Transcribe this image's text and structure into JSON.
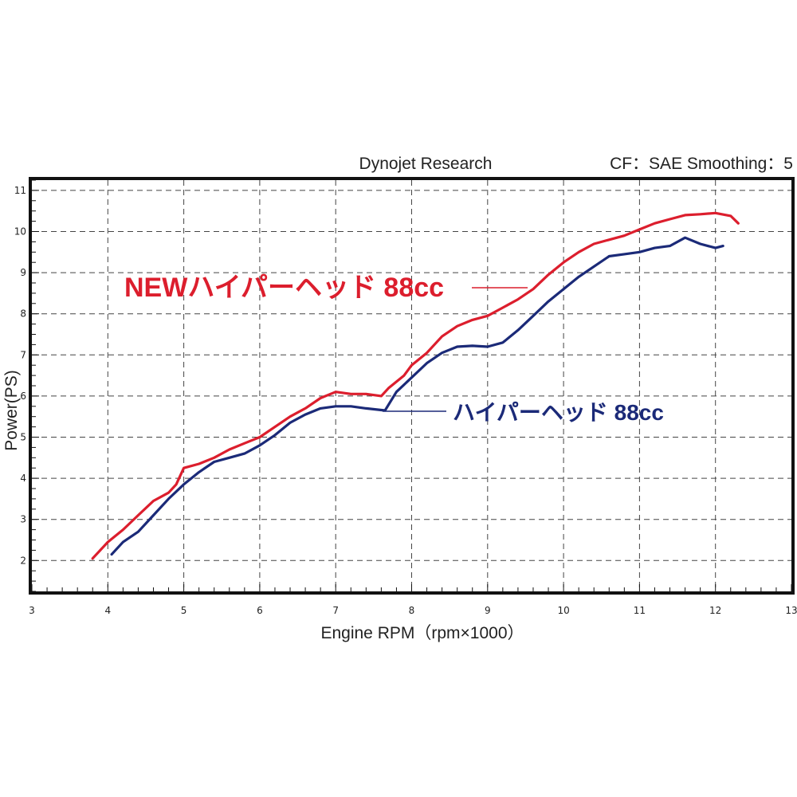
{
  "header": {
    "left_text": "Dynojet Research",
    "right_text": "CF：SAE Smoothing：5"
  },
  "chart_data": {
    "type": "line",
    "xlabel": "Engine RPM（rpm×1000）",
    "ylabel": "Power(PS)",
    "xlim": [
      3,
      13
    ],
    "ylim": [
      1.25,
      11.25
    ],
    "xticks": [
      3,
      4,
      5,
      6,
      7,
      8,
      9,
      10,
      11,
      12,
      13
    ],
    "yticks": [
      2,
      3,
      4,
      5,
      6,
      7,
      8,
      9,
      10,
      11
    ],
    "grid": true,
    "series": [
      {
        "name": "NEWハイパーヘッド 88cc",
        "color": "#dc1e2d",
        "points": [
          [
            3.8,
            2.05
          ],
          [
            4.0,
            2.45
          ],
          [
            4.2,
            2.75
          ],
          [
            4.4,
            3.1
          ],
          [
            4.6,
            3.45
          ],
          [
            4.8,
            3.65
          ],
          [
            4.9,
            3.85
          ],
          [
            5.0,
            4.25
          ],
          [
            5.2,
            4.35
          ],
          [
            5.4,
            4.5
          ],
          [
            5.6,
            4.7
          ],
          [
            5.8,
            4.85
          ],
          [
            6.0,
            5.0
          ],
          [
            6.2,
            5.25
          ],
          [
            6.4,
            5.5
          ],
          [
            6.6,
            5.7
          ],
          [
            6.8,
            5.95
          ],
          [
            7.0,
            6.1
          ],
          [
            7.2,
            6.05
          ],
          [
            7.4,
            6.05
          ],
          [
            7.6,
            6.0
          ],
          [
            7.7,
            6.2
          ],
          [
            7.9,
            6.5
          ],
          [
            8.0,
            6.75
          ],
          [
            8.2,
            7.05
          ],
          [
            8.4,
            7.45
          ],
          [
            8.6,
            7.7
          ],
          [
            8.8,
            7.85
          ],
          [
            9.0,
            7.95
          ],
          [
            9.2,
            8.15
          ],
          [
            9.4,
            8.35
          ],
          [
            9.6,
            8.6
          ],
          [
            9.8,
            8.95
          ],
          [
            10.0,
            9.25
          ],
          [
            10.2,
            9.5
          ],
          [
            10.4,
            9.7
          ],
          [
            10.6,
            9.8
          ],
          [
            10.8,
            9.9
          ],
          [
            11.0,
            10.05
          ],
          [
            11.2,
            10.2
          ],
          [
            11.4,
            10.3
          ],
          [
            11.6,
            10.4
          ],
          [
            11.8,
            10.42
          ],
          [
            12.0,
            10.45
          ],
          [
            12.2,
            10.38
          ],
          [
            12.3,
            10.2
          ]
        ]
      },
      {
        "name": "ハイパーヘッド 88cc",
        "color": "#1b2a78",
        "points": [
          [
            4.05,
            2.15
          ],
          [
            4.2,
            2.45
          ],
          [
            4.4,
            2.7
          ],
          [
            4.6,
            3.1
          ],
          [
            4.8,
            3.5
          ],
          [
            5.0,
            3.85
          ],
          [
            5.2,
            4.15
          ],
          [
            5.4,
            4.4
          ],
          [
            5.6,
            4.5
          ],
          [
            5.8,
            4.6
          ],
          [
            6.0,
            4.8
          ],
          [
            6.2,
            5.05
          ],
          [
            6.4,
            5.35
          ],
          [
            6.6,
            5.55
          ],
          [
            6.8,
            5.7
          ],
          [
            7.0,
            5.75
          ],
          [
            7.2,
            5.75
          ],
          [
            7.4,
            5.7
          ],
          [
            7.65,
            5.65
          ],
          [
            7.8,
            6.1
          ],
          [
            8.0,
            6.45
          ],
          [
            8.2,
            6.8
          ],
          [
            8.4,
            7.05
          ],
          [
            8.6,
            7.2
          ],
          [
            8.8,
            7.22
          ],
          [
            9.0,
            7.2
          ],
          [
            9.2,
            7.3
          ],
          [
            9.4,
            7.6
          ],
          [
            9.6,
            7.95
          ],
          [
            9.8,
            8.3
          ],
          [
            10.0,
            8.6
          ],
          [
            10.2,
            8.9
          ],
          [
            10.4,
            9.15
          ],
          [
            10.6,
            9.4
          ],
          [
            10.8,
            9.45
          ],
          [
            11.0,
            9.5
          ],
          [
            11.2,
            9.6
          ],
          [
            11.4,
            9.65
          ],
          [
            11.6,
            9.85
          ],
          [
            11.8,
            9.7
          ],
          [
            12.0,
            9.6
          ],
          [
            12.1,
            9.65
          ]
        ]
      }
    ]
  },
  "labels": {
    "red": "NEWハイパーヘッド 88cc",
    "blue": "ハイパーヘッド 88cc"
  }
}
